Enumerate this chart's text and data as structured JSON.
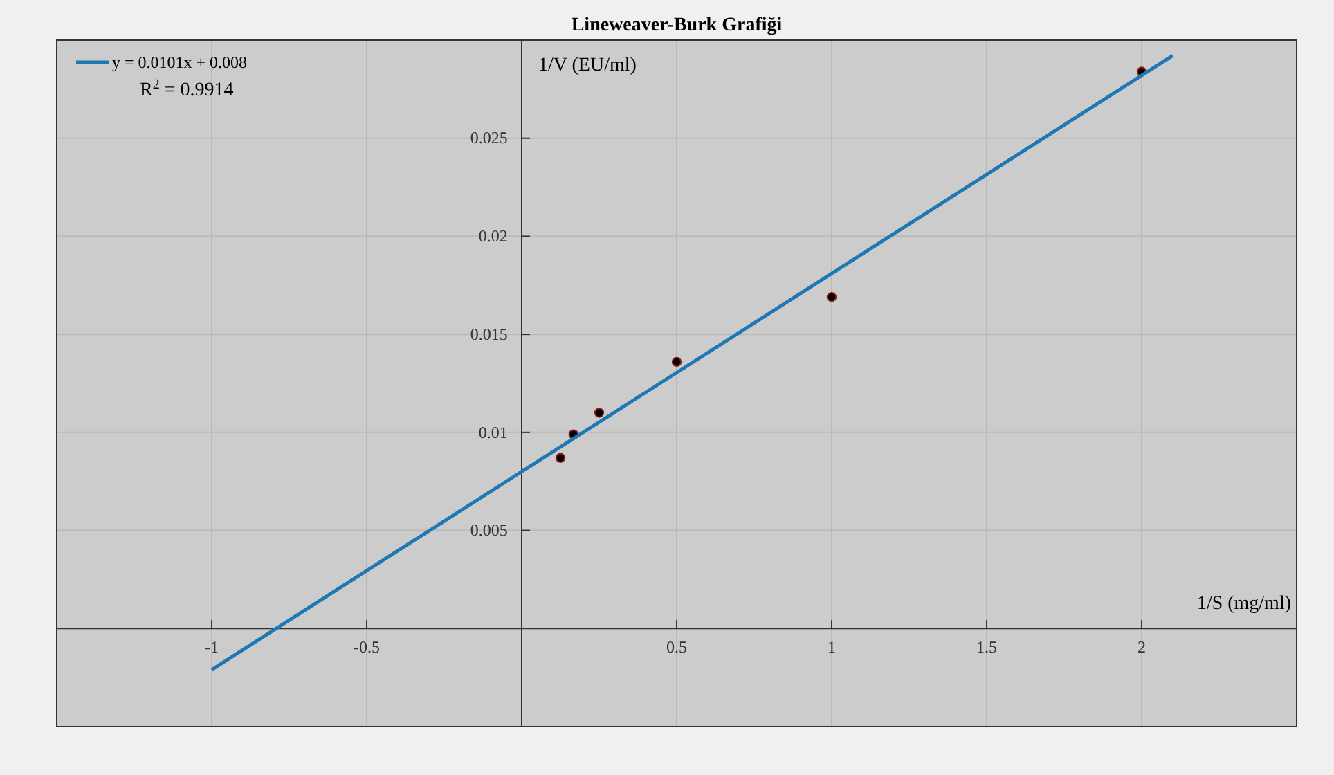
{
  "chart_data": {
    "type": "scatter",
    "title": "Lineweaver-Burk Grafiği",
    "xlabel": "1/S (mg/ml)",
    "ylabel": "1/V (EU/ml)",
    "xlim": [
      -1.5,
      2.5
    ],
    "ylim": [
      -0.005,
      0.03
    ],
    "xticks": [
      -1,
      -0.5,
      0.5,
      1,
      1.5,
      2
    ],
    "yticks": [
      0.005,
      0.01,
      0.015,
      0.02,
      0.025
    ],
    "grid": true,
    "legend": "top left",
    "annotations": [
      "R$^{2}$ = 0.9914"
    ],
    "series": [
      {
        "marker": "circle",
        "color": "#000000",
        "x": [
          0.125,
          0.167,
          0.25,
          0.5,
          1,
          2
        ],
        "values": [
          0.0087,
          0.0099,
          0.011,
          0.0136,
          0.0169,
          0.0284
        ]
      },
      {
        "type": "line",
        "name": "y = 0.0101x + 0.008",
        "color": "#1f77b4",
        "x": [
          -1,
          2.1
        ],
        "values": [
          -0.0021,
          0.02921
        ],
        "line_style": "solid",
        "marker": "none"
      }
    ]
  }
}
